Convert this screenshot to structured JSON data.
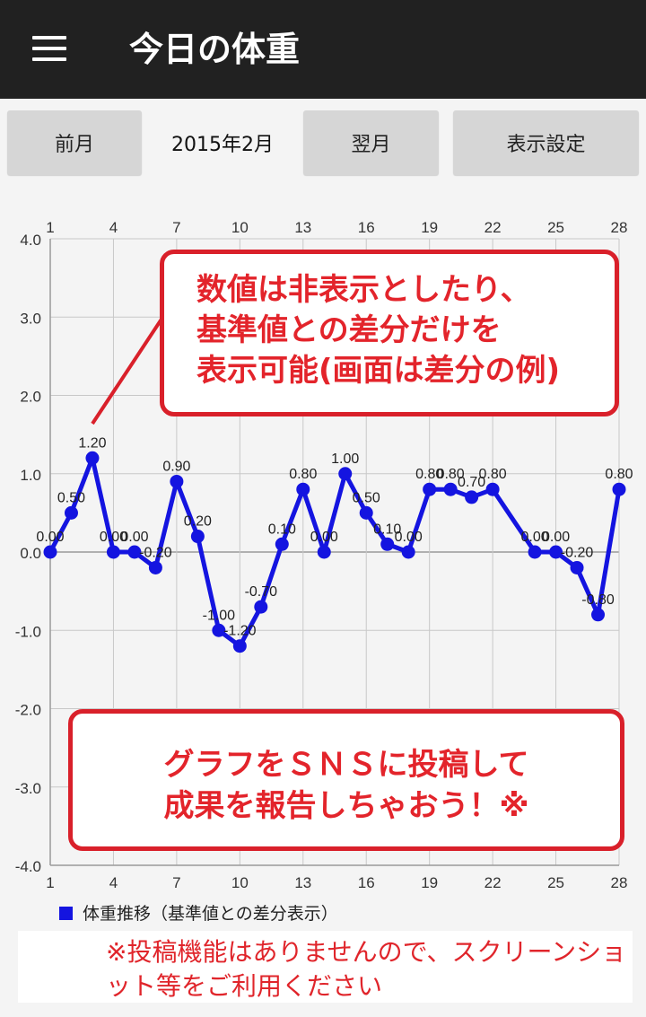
{
  "app_bar": {
    "title": "今日の体重",
    "menu_icon": "hamburger-menu-icon"
  },
  "nav": {
    "prev_label": "前月",
    "month_label": "2015年2月",
    "next_label": "翌月",
    "settings_label": "表示設定"
  },
  "chart_data": {
    "type": "line",
    "x_ticks": [
      "1",
      "4",
      "7",
      "10",
      "13",
      "16",
      "19",
      "22",
      "25",
      "28"
    ],
    "y_ticks": [
      "4.0",
      "3.0",
      "2.0",
      "1.0",
      "0.0",
      "-1.0",
      "-2.0",
      "-3.0",
      "-4.0"
    ],
    "ylim": [
      -4,
      4
    ],
    "xlim": [
      1,
      28
    ],
    "grid": true,
    "legend_position": "bottom-left",
    "series": [
      {
        "name": "体重推移（基準値との差分表示）",
        "color": "#1414e0",
        "x": [
          1,
          2,
          3,
          4,
          5,
          6,
          7,
          8,
          9,
          10,
          11,
          12,
          13,
          14,
          15,
          16,
          17,
          18,
          19,
          20,
          21,
          22,
          24,
          25,
          26,
          27,
          28
        ],
        "y": [
          0.0,
          0.5,
          1.2,
          0.0,
          0.0,
          -0.2,
          0.9,
          0.2,
          -1.0,
          -1.2,
          -0.7,
          0.1,
          0.8,
          0.0,
          1.0,
          0.5,
          0.1,
          0.0,
          0.8,
          0.8,
          0.7,
          0.8,
          0.0,
          0.0,
          -0.2,
          -0.8,
          0.8
        ],
        "labels": [
          "0.00",
          "0.50",
          "1.20",
          "0.00",
          "0.00",
          "-0.20",
          "0.90",
          "0.20",
          "-1.00",
          "-1.20",
          "-0.70",
          "0.10",
          "0.80",
          "0.00",
          "1.00",
          "0.50",
          "0.10",
          "0.00",
          "0.80",
          "0.80",
          "0.70",
          "0.80",
          "0.00",
          "0.00",
          "-0.20",
          "-0.80",
          "0.80"
        ]
      }
    ]
  },
  "callouts": {
    "top": [
      "数値は非表示としたり、",
      "基準値との差分だけを",
      "表示可能(画面は差分の例)"
    ],
    "bottom": [
      "グラフをＳＮＳに投稿して",
      "成果を報告しちゃおう！※"
    ]
  },
  "footnote": "※投稿機能はありませんので、スクリーンショット等をご利用ください"
}
